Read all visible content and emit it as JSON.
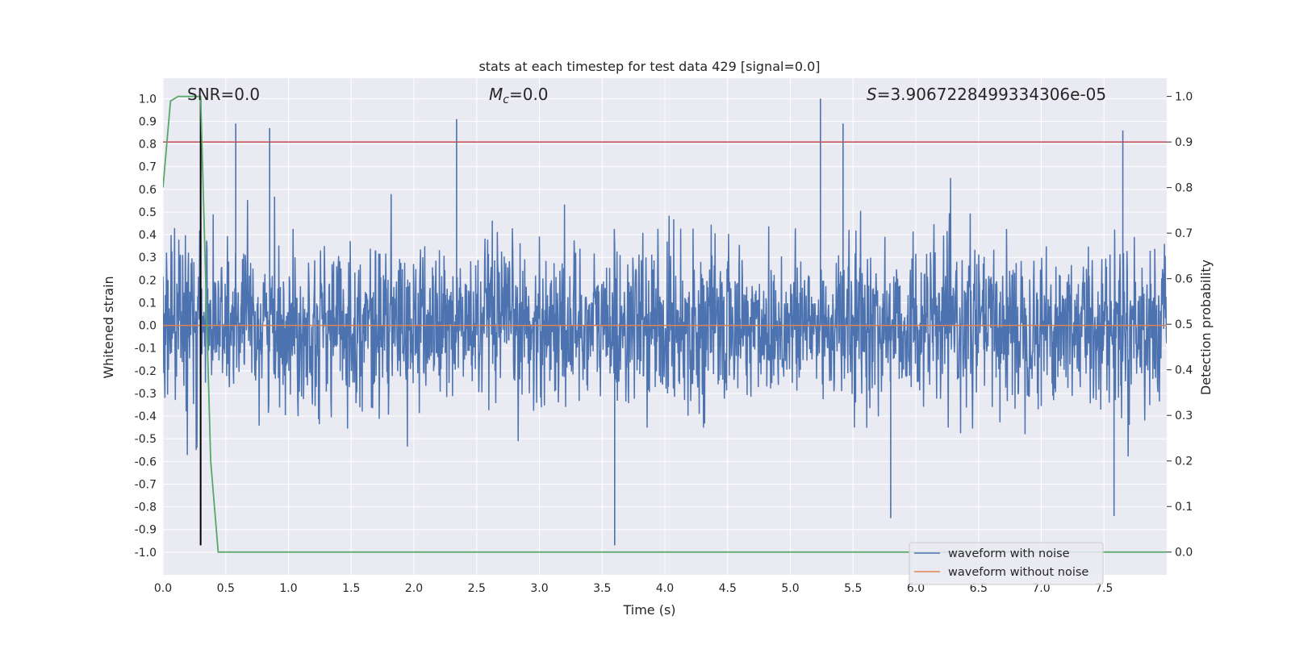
{
  "chart_data": {
    "type": "line",
    "title": "stats at each timestep for test data 429 [signal=0.0]",
    "xlabel": "Time (s)",
    "ylabel_left": "Whitened strain",
    "ylabel_right": "Detection probability",
    "xlim": [
      0.0,
      8.0
    ],
    "ylim_left": [
      -1.1,
      1.09
    ],
    "ylim_right": [
      -0.05,
      1.04
    ],
    "x_ticks": [
      0.0,
      0.5,
      1.0,
      1.5,
      2.0,
      2.5,
      3.0,
      3.5,
      4.0,
      4.5,
      5.0,
      5.5,
      6.0,
      6.5,
      7.0,
      7.5
    ],
    "x_tick_labels": [
      "0.0",
      "0.5",
      "1.0",
      "1.5",
      "2.0",
      "2.5",
      "3.0",
      "3.5",
      "4.0",
      "4.5",
      "5.0",
      "5.5",
      "6.0",
      "6.5",
      "7.0",
      "7.5"
    ],
    "y_left_ticks": [
      1.0,
      0.9,
      0.8,
      0.7,
      0.6,
      0.5,
      0.4,
      0.3,
      0.2,
      0.1,
      0.0,
      -0.1,
      -0.2,
      -0.3,
      -0.4,
      -0.5,
      -0.6,
      -0.7,
      -0.8,
      -0.9,
      -1.0
    ],
    "y_left_tick_labels": [
      "1.0",
      "0.9",
      "0.8",
      "0.7",
      "0.6",
      "0.5",
      "0.4",
      "0.3",
      "0.2",
      "0.1",
      "0.0",
      "-0.1",
      "-0.2",
      "-0.3",
      "-0.4",
      "-0.5",
      "-0.6",
      "-0.7",
      "-0.8",
      "-0.9",
      "-1.0"
    ],
    "y_right_ticks": [
      1.0,
      0.9,
      0.8,
      0.7,
      0.6,
      0.5,
      0.4,
      0.3,
      0.2,
      0.1,
      0.0
    ],
    "y_right_tick_labels": [
      "1.0",
      "0.9",
      "0.8",
      "0.7",
      "0.6",
      "0.5",
      "0.4",
      "0.3",
      "0.2",
      "0.1",
      "0.0"
    ],
    "annotations": {
      "snr": "SNR=0.0",
      "mc_symbol": "M",
      "mc_sub": "c",
      "mc_value": "=0.0",
      "s_symbol": "S",
      "s_value": "=3.9067228499334306e-05"
    },
    "legend": {
      "position": "lower right",
      "entries": [
        {
          "label": "waveform with noise",
          "color": "#4c72b0"
        },
        {
          "label": "waveform without noise",
          "color": "#dd8452"
        }
      ]
    },
    "series": [
      {
        "name": "waveform with noise",
        "axis": "left",
        "color": "#4c72b0",
        "style": "noise",
        "amplitude_std": 0.17,
        "x_range": [
          0.0,
          8.0
        ],
        "notable_peaks": [
          {
            "x": 0.58,
            "y": 0.89
          },
          {
            "x": 0.85,
            "y": 0.87
          },
          {
            "x": 2.34,
            "y": 0.91
          },
          {
            "x": 5.24,
            "y": 1.0
          },
          {
            "x": 5.42,
            "y": 0.89
          },
          {
            "x": 7.65,
            "y": 0.86
          },
          {
            "x": 3.6,
            "y": -0.97
          },
          {
            "x": 5.8,
            "y": -0.85
          },
          {
            "x": 7.58,
            "y": -0.84
          }
        ]
      },
      {
        "name": "waveform without noise",
        "axis": "left",
        "color": "#dd8452",
        "x": [
          0.0,
          8.0
        ],
        "y": [
          0.0,
          0.0
        ]
      },
      {
        "name": "detection probability",
        "axis": "right",
        "color": "#55a868",
        "x": [
          0.0,
          0.06,
          0.12,
          0.2,
          0.3,
          0.38,
          0.44,
          8.0
        ],
        "y": [
          0.8,
          0.99,
          1.0,
          1.0,
          1.0,
          0.2,
          0.0,
          0.0
        ]
      }
    ],
    "hlines": [
      {
        "axis": "right",
        "y": 0.9,
        "color": "#c44e52"
      }
    ],
    "vlines": [
      {
        "axis": "left",
        "x": 0.3,
        "y_range": [
          -0.97,
          1.0
        ],
        "color": "#000000"
      }
    ]
  }
}
